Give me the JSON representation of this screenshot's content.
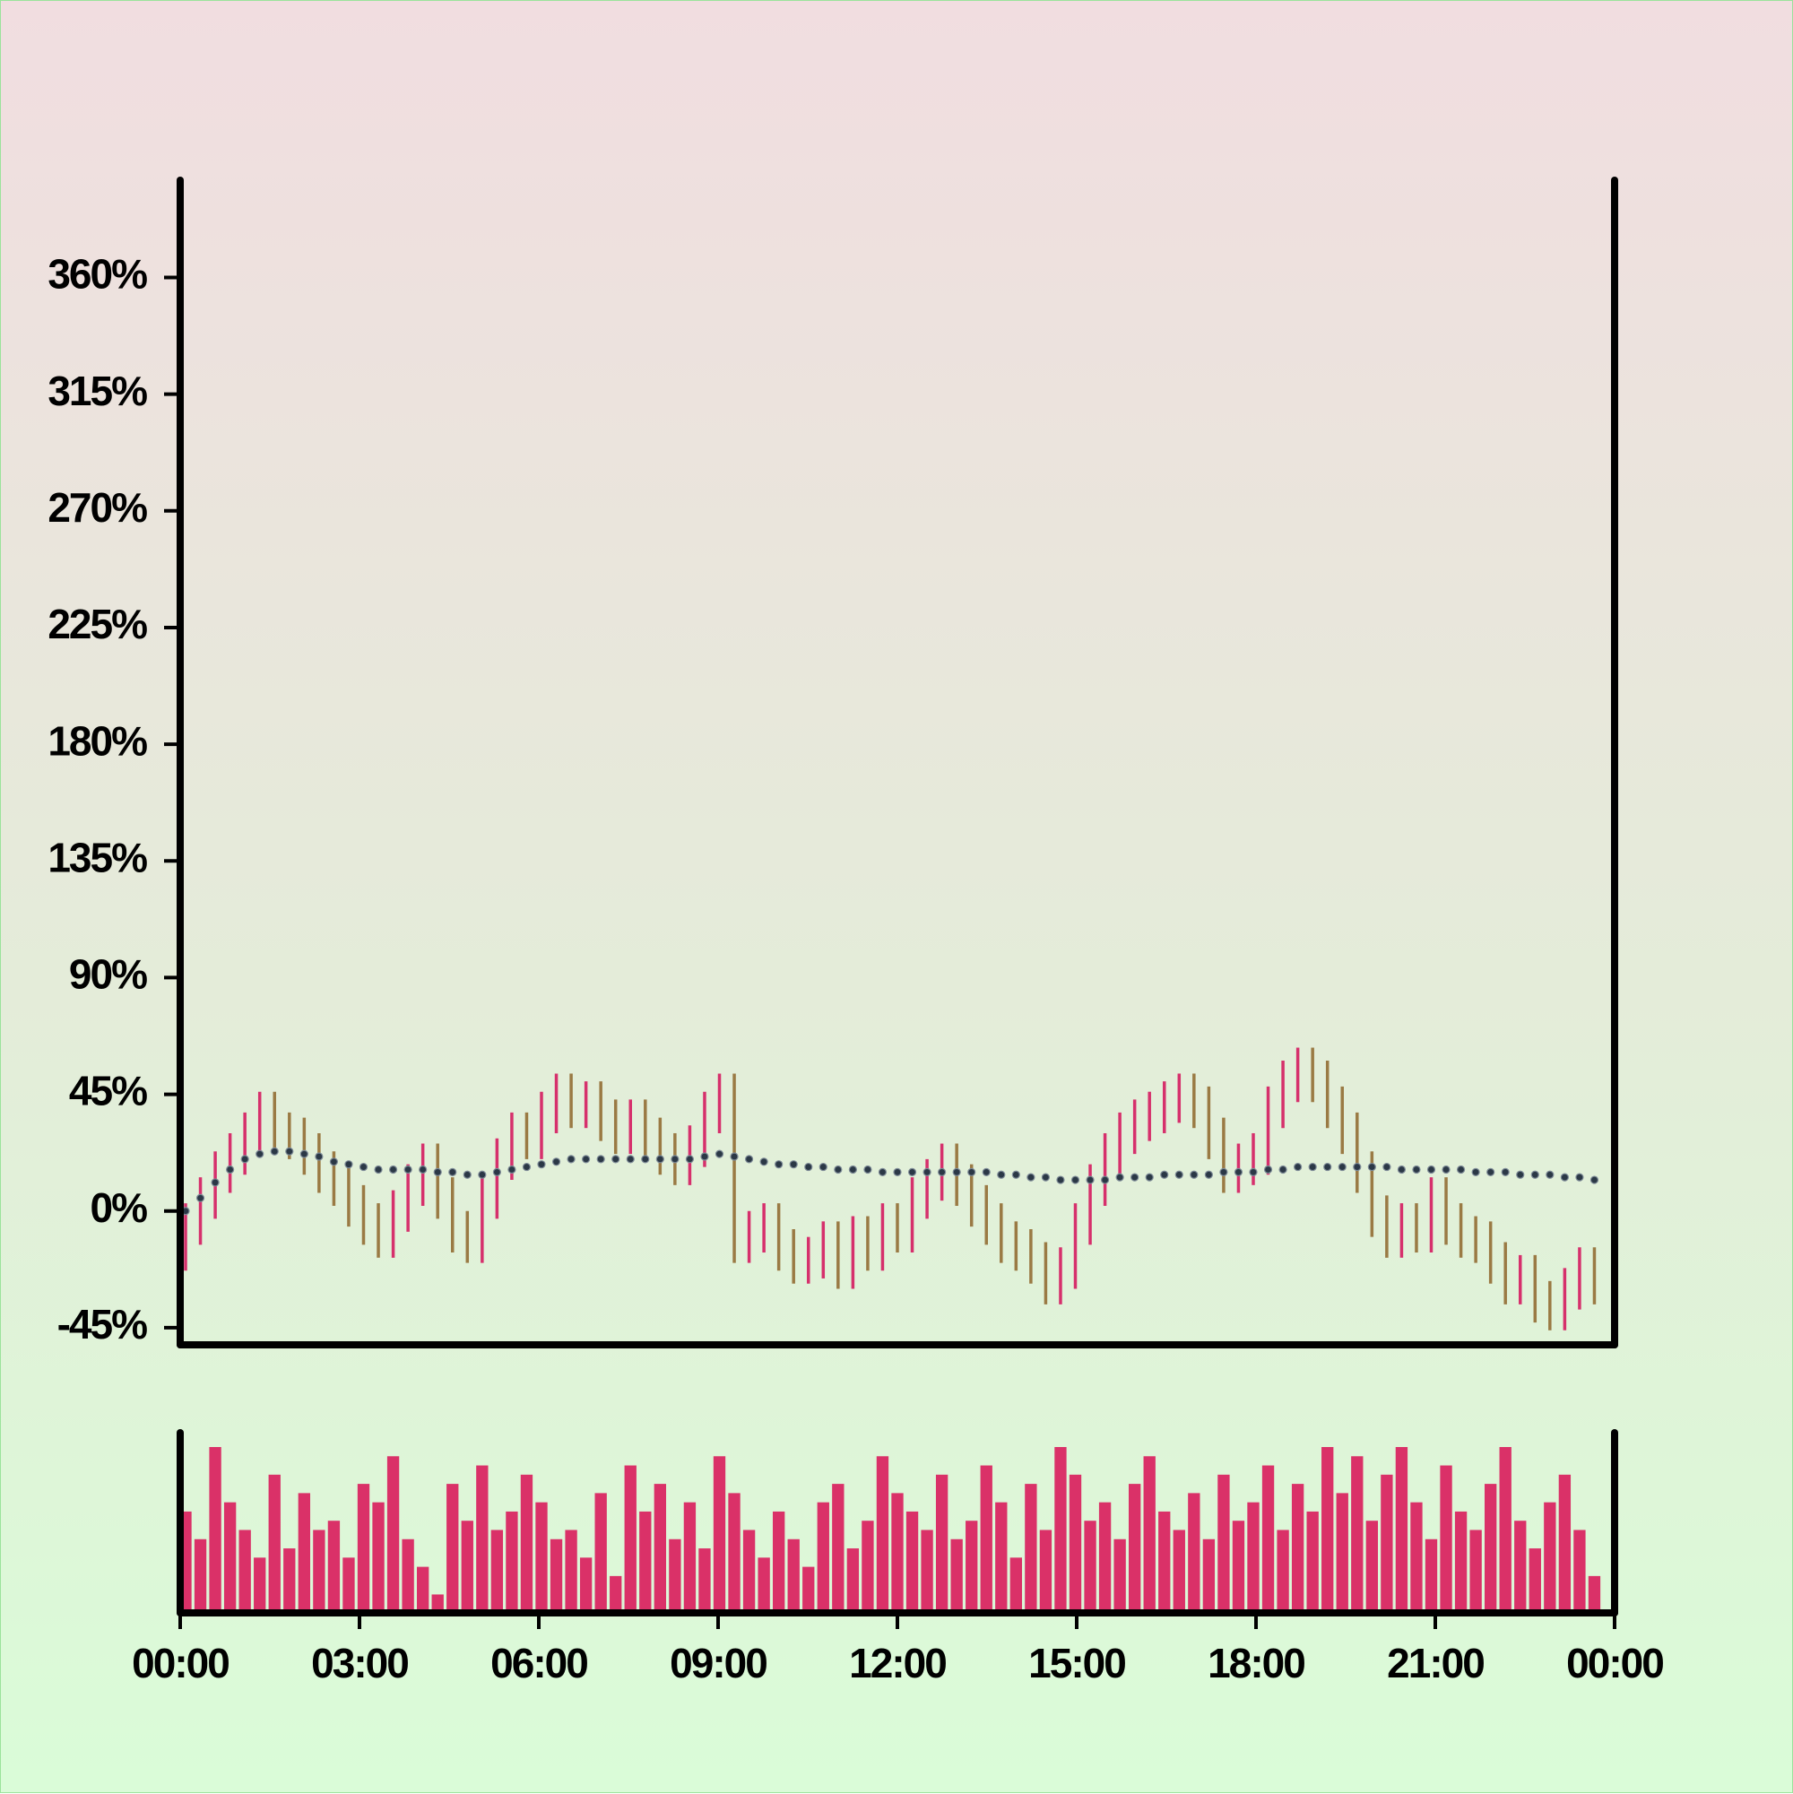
{
  "chart_data": {
    "type": "ohlc",
    "x": [
      0,
      0.25,
      0.5,
      0.75,
      1,
      1.25,
      1.5,
      1.75,
      2,
      2.25,
      2.5,
      2.75,
      3,
      3.25,
      3.5,
      3.75,
      4,
      4.25,
      4.5,
      4.75,
      5,
      5.25,
      5.5,
      5.75,
      6,
      6.25,
      6.5,
      6.75,
      7,
      7.25,
      7.5,
      7.75,
      8,
      8.25,
      8.5,
      8.75,
      9,
      9.25,
      9.5,
      9.75,
      10,
      10.25,
      10.5,
      10.75,
      11,
      11.25,
      11.5,
      11.75,
      12,
      12.25,
      12.5,
      12.75,
      13,
      13.25,
      13.5,
      13.75,
      14,
      14.25,
      14.5,
      14.75,
      15,
      15.25,
      15.5,
      15.75,
      16,
      16.25,
      16.5,
      16.75,
      17,
      17.25,
      17.5,
      17.75,
      18,
      18.25,
      18.5,
      18.75,
      19,
      19.25,
      19.5,
      19.75,
      20,
      20.25,
      20.5,
      20.75,
      21,
      21.25,
      21.5,
      21.75,
      22,
      22.25,
      22.5,
      22.75,
      23,
      23.25,
      23.5,
      23.75
    ],
    "open": [
      -15,
      -5,
      5,
      15,
      22,
      30,
      38,
      30,
      28,
      22,
      15,
      10,
      2,
      -5,
      -10,
      0,
      10,
      18,
      5,
      -8,
      -12,
      5,
      20,
      30,
      28,
      38,
      45,
      40,
      42,
      35,
      30,
      35,
      28,
      22,
      18,
      25,
      38,
      45,
      -12,
      -8,
      -5,
      -15,
      -20,
      -18,
      -12,
      -22,
      -10,
      -15,
      -5,
      -8,
      5,
      12,
      18,
      10,
      2,
      -5,
      -12,
      -15,
      -20,
      -28,
      -22,
      -5,
      10,
      22,
      30,
      35,
      38,
      42,
      45,
      40,
      28,
      15,
      18,
      22,
      40,
      50,
      55,
      50,
      40,
      30,
      15,
      -2,
      -10,
      -5,
      -8,
      5,
      -5,
      -10,
      -12,
      -20,
      -28,
      -25,
      -35,
      -38,
      -30,
      -22
    ],
    "high": [
      3,
      13,
      23,
      30,
      38,
      46,
      46,
      38,
      36,
      30,
      23,
      18,
      10,
      3,
      8,
      18,
      26,
      26,
      13,
      0,
      13,
      28,
      38,
      38,
      46,
      53,
      53,
      50,
      50,
      43,
      43,
      43,
      36,
      30,
      33,
      46,
      53,
      53,
      0,
      3,
      3,
      -7,
      -10,
      -4,
      -4,
      -2,
      -2,
      3,
      3,
      13,
      20,
      26,
      26,
      18,
      10,
      3,
      -4,
      -7,
      -12,
      -14,
      3,
      18,
      30,
      38,
      43,
      46,
      50,
      53,
      53,
      48,
      36,
      26,
      30,
      48,
      58,
      63,
      63,
      58,
      48,
      38,
      23,
      6,
      3,
      3,
      13,
      13,
      3,
      -2,
      -4,
      -12,
      -17,
      -17,
      -27,
      -22,
      -14,
      -14
    ],
    "low": [
      -23,
      -13,
      -3,
      7,
      14,
      22,
      22,
      20,
      14,
      7,
      2,
      -6,
      -13,
      -18,
      -18,
      -8,
      2,
      -3,
      -16,
      -20,
      -20,
      -3,
      12,
      20,
      20,
      30,
      32,
      32,
      27,
      22,
      22,
      20,
      14,
      10,
      10,
      17,
      30,
      -20,
      -20,
      -16,
      -23,
      -28,
      -28,
      -26,
      -30,
      -30,
      -23,
      -23,
      -16,
      -16,
      -3,
      4,
      2,
      -6,
      -13,
      -20,
      -23,
      -28,
      -36,
      -36,
      -30,
      -13,
      2,
      14,
      22,
      27,
      30,
      34,
      32,
      20,
      7,
      7,
      10,
      14,
      32,
      42,
      42,
      32,
      22,
      7,
      -10,
      -18,
      -18,
      -16,
      -16,
      -13,
      -18,
      -20,
      -28,
      -36,
      -36,
      -43,
      -46,
      -46,
      -38,
      -36
    ],
    "close": [
      -5,
      5,
      15,
      22,
      30,
      38,
      30,
      28,
      22,
      15,
      10,
      2,
      -5,
      -10,
      0,
      10,
      18,
      5,
      -8,
      -12,
      5,
      20,
      30,
      28,
      38,
      45,
      40,
      42,
      35,
      30,
      35,
      28,
      22,
      18,
      25,
      38,
      45,
      -12,
      -8,
      -5,
      -15,
      -20,
      -18,
      -12,
      -22,
      -10,
      -15,
      -5,
      -8,
      5,
      12,
      18,
      10,
      2,
      -5,
      -12,
      -15,
      -20,
      -28,
      -22,
      -5,
      10,
      22,
      30,
      35,
      38,
      42,
      45,
      40,
      28,
      15,
      18,
      22,
      40,
      50,
      55,
      50,
      40,
      30,
      15,
      -2,
      -10,
      -5,
      -8,
      5,
      -5,
      -10,
      -12,
      -20,
      -28,
      -25,
      -35,
      -38,
      -30,
      -22,
      -28
    ],
    "up_color": "#d6306c",
    "down_color": "#9a7a44",
    "moving_average": {
      "color": "#2b3846",
      "values": [
        0,
        5,
        11,
        16,
        20,
        22,
        23,
        23,
        22,
        21,
        19,
        18,
        17,
        16,
        16,
        16,
        16,
        15,
        15,
        14,
        14,
        15,
        16,
        17,
        18,
        19,
        20,
        20,
        20,
        20,
        20,
        20,
        20,
        20,
        20,
        21,
        22,
        21,
        20,
        19,
        18,
        18,
        17,
        17,
        16,
        16,
        16,
        15,
        15,
        15,
        15,
        15,
        15,
        15,
        15,
        14,
        14,
        13,
        13,
        12,
        12,
        12,
        12,
        13,
        13,
        13,
        14,
        14,
        14,
        14,
        15,
        15,
        15,
        16,
        16,
        17,
        17,
        17,
        17,
        17,
        17,
        17,
        16,
        16,
        16,
        16,
        16,
        15,
        15,
        15,
        14,
        14,
        14,
        13,
        13,
        12
      ]
    },
    "volume": {
      "color": "#da3168",
      "values": [
        55,
        40,
        90,
        60,
        45,
        30,
        75,
        35,
        65,
        45,
        50,
        30,
        70,
        60,
        85,
        40,
        25,
        10,
        70,
        50,
        80,
        45,
        55,
        75,
        60,
        40,
        45,
        30,
        65,
        20,
        80,
        55,
        70,
        40,
        60,
        35,
        85,
        65,
        45,
        30,
        55,
        40,
        25,
        60,
        70,
        35,
        50,
        85,
        65,
        55,
        45,
        75,
        40,
        50,
        80,
        60,
        30,
        70,
        45,
        90,
        75,
        50,
        60,
        40,
        70,
        85,
        55,
        45,
        65,
        40,
        75,
        50,
        60,
        80,
        45,
        70,
        55,
        90,
        65,
        85,
        50,
        75,
        90,
        60,
        40,
        80,
        55,
        45,
        70,
        90,
        50,
        35,
        60,
        75,
        45,
        20
      ]
    },
    "xlim": [
      0,
      24
    ],
    "xticks": [
      {
        "value": 0,
        "label": "00:00"
      },
      {
        "value": 3,
        "label": "03:00"
      },
      {
        "value": 6,
        "label": "06:00"
      },
      {
        "value": 9,
        "label": "09:00"
      },
      {
        "value": 12,
        "label": "12:00"
      },
      {
        "value": 15,
        "label": "15:00"
      },
      {
        "value": 18,
        "label": "18:00"
      },
      {
        "value": 21,
        "label": "21:00"
      },
      {
        "value": 24,
        "label": "00:00"
      }
    ],
    "ylim": [
      -51.6,
      397.5
    ],
    "yticks": [
      {
        "value": -45,
        "label": "-45%"
      },
      {
        "value": 0,
        "label": "0%"
      },
      {
        "value": 45,
        "label": "45%"
      },
      {
        "value": 90,
        "label": "90%"
      },
      {
        "value": 135,
        "label": "135%"
      },
      {
        "value": 180,
        "label": "180%"
      },
      {
        "value": 225,
        "label": "225%"
      },
      {
        "value": 270,
        "label": "270%"
      },
      {
        "value": 315,
        "label": "315%"
      },
      {
        "value": 360,
        "label": "360%"
      }
    ]
  }
}
